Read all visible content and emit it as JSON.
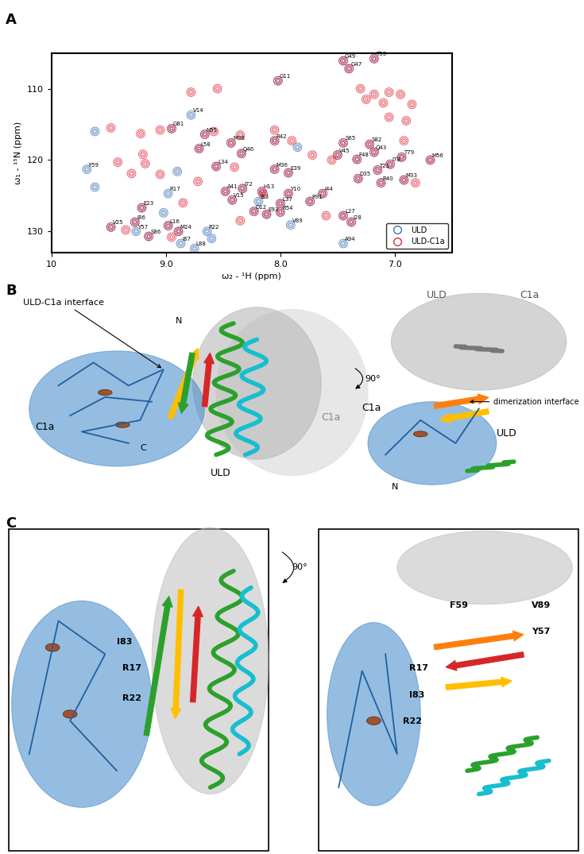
{
  "chart_data": {
    "type": "scatter",
    "panel_label": "A",
    "x_label": "ω₂ - ¹H (ppm)",
    "y_label": "ω₁ - ¹⁵N (ppm)",
    "xlim": [
      10,
      6.5
    ],
    "ylim": [
      133,
      105
    ],
    "xticks": [
      10,
      {
        "value": 9,
        "label": "9.0"
      },
      {
        "value": 8,
        "label": "8.0"
      },
      {
        "value": 7,
        "label": "7.0"
      }
    ],
    "yticks": [
      110,
      120,
      130
    ],
    "legend": "lower right",
    "series": [
      {
        "name": "ULD",
        "color": "#3a6fb6",
        "marker": "o",
        "x": [
          7.45,
          7.4,
          7.18,
          8.02,
          8.78,
          8.95,
          8.66,
          8.43,
          8.05,
          8.71,
          8.34,
          7.45,
          7.22,
          7.18,
          7.5,
          7.33,
          6.94,
          7.04,
          6.69,
          8.56,
          8.05,
          7.93,
          7.15,
          7.32,
          7.12,
          6.92,
          9.69,
          8.16,
          8.33,
          8.48,
          7.93,
          7.63,
          8.98,
          8.42,
          8.19,
          8.0,
          7.74,
          9.21,
          8.23,
          8.12,
          8.0,
          7.45,
          7.38,
          7.91,
          9.27,
          9.48,
          9.26,
          8.98,
          8.89,
          8.64,
          9.15,
          8.87,
          8.75,
          7.45,
          9.62,
          9.62,
          8.9,
          7.85,
          8.6,
          9.02
        ],
        "values": [
          106.1,
          107.2,
          105.8,
          108.9,
          113.7,
          115.6,
          116.4,
          117.6,
          117.3,
          118.4,
          119.1,
          117.6,
          117.8,
          118.9,
          119.3,
          119.9,
          119.6,
          120.6,
          120.0,
          120.9,
          121.3,
          121.8,
          121.4,
          122.6,
          123.2,
          122.8,
          121.3,
          124.4,
          124.0,
          124.4,
          124.7,
          124.7,
          124.7,
          125.6,
          125.8,
          126.1,
          125.8,
          126.7,
          127.2,
          127.6,
          127.3,
          127.8,
          128.7,
          129.1,
          128.7,
          129.4,
          130.0,
          129.2,
          130.0,
          130.0,
          130.7,
          131.7,
          132.4,
          131.7,
          116.0,
          123.8,
          121.6,
          118.2,
          131.0,
          127.4
        ]
      },
      {
        "name": "ULD-C1a",
        "color": "#e0283a",
        "marker": "o",
        "x": [
          7.45,
          7.4,
          7.18,
          8.02,
          8.95,
          8.66,
          8.43,
          8.05,
          8.71,
          8.34,
          7.45,
          7.22,
          7.18,
          7.5,
          7.33,
          6.94,
          7.04,
          6.69,
          8.56,
          8.05,
          7.93,
          7.15,
          7.32,
          7.12,
          6.92,
          8.16,
          8.33,
          8.48,
          7.93,
          7.63,
          8.42,
          8.0,
          7.74,
          9.21,
          8.23,
          8.12,
          8.0,
          7.45,
          7.38,
          9.27,
          9.48,
          8.98,
          8.89,
          9.15,
          9.48,
          9.22,
          9.05,
          8.78,
          8.55,
          9.2,
          9.18,
          9.42,
          9.05,
          9.35,
          8.85,
          8.58,
          8.35,
          8.05,
          7.9,
          7.72,
          7.55,
          7.3,
          7.18,
          7.05,
          6.95,
          7.25,
          7.1,
          6.85,
          7.05,
          6.9,
          6.92,
          6.82,
          8.4,
          8.15,
          7.6,
          8.35,
          8.72,
          8.95,
          9.3
        ],
        "values": [
          106.1,
          107.2,
          105.8,
          108.9,
          115.6,
          116.4,
          117.6,
          117.3,
          118.4,
          119.1,
          117.6,
          117.8,
          118.9,
          119.3,
          119.9,
          119.6,
          120.6,
          120.0,
          120.9,
          121.3,
          121.8,
          121.4,
          122.6,
          123.2,
          122.8,
          124.4,
          124.0,
          124.4,
          124.7,
          124.7,
          125.6,
          126.1,
          125.8,
          126.7,
          127.2,
          127.6,
          127.3,
          127.8,
          128.7,
          128.7,
          129.4,
          129.2,
          130.0,
          130.7,
          115.5,
          116.3,
          115.8,
          110.5,
          110.0,
          119.2,
          120.5,
          120.3,
          122.0,
          129.8,
          126.0,
          116.0,
          116.5,
          115.8,
          117.3,
          119.3,
          120.0,
          110.0,
          110.8,
          110.5,
          110.8,
          111.5,
          112.0,
          112.2,
          114.0,
          114.5,
          117.3,
          123.2,
          121.0,
          124.8,
          127.8,
          128.5,
          123.0,
          130.8,
          121.9
        ]
      }
    ],
    "peak_labels": [
      {
        "text": "G49",
        "x": 7.45,
        "y": 106.1
      },
      {
        "text": "G47",
        "x": 7.4,
        "y": 107.2
      },
      {
        "text": "T53",
        "x": 7.18,
        "y": 105.8
      },
      {
        "text": "G11",
        "x": 8.02,
        "y": 108.9
      },
      {
        "text": "V14",
        "x": 8.78,
        "y": 113.7
      },
      {
        "text": "G81",
        "x": 8.95,
        "y": 115.6
      },
      {
        "text": "N55",
        "x": 8.66,
        "y": 116.4
      },
      {
        "text": "M38",
        "x": 8.43,
        "y": 117.6
      },
      {
        "text": "R42",
        "x": 8.05,
        "y": 117.3
      },
      {
        "text": "L58",
        "x": 8.71,
        "y": 118.4
      },
      {
        "text": "Q46",
        "x": 8.34,
        "y": 119.1
      },
      {
        "text": "S65",
        "x": 7.45,
        "y": 117.6
      },
      {
        "text": "S82",
        "x": 7.22,
        "y": 117.8
      },
      {
        "text": "Q43",
        "x": 7.18,
        "y": 118.9
      },
      {
        "text": "V45",
        "x": 7.5,
        "y": 119.3
      },
      {
        "text": "F48",
        "x": 7.33,
        "y": 119.9
      },
      {
        "text": "T79",
        "x": 6.94,
        "y": 119.6
      },
      {
        "text": "I78",
        "x": 7.04,
        "y": 120.6
      },
      {
        "text": "M56",
        "x": 6.69,
        "y": 120.0
      },
      {
        "text": "L34",
        "x": 8.56,
        "y": 120.9
      },
      {
        "text": "M36",
        "x": 8.05,
        "y": 121.3
      },
      {
        "text": "E39",
        "x": 7.93,
        "y": 121.8
      },
      {
        "text": "T21",
        "x": 7.15,
        "y": 121.4
      },
      {
        "text": "D35",
        "x": 7.32,
        "y": 122.6
      },
      {
        "text": "R40",
        "x": 7.12,
        "y": 123.2
      },
      {
        "text": "M33",
        "x": 6.92,
        "y": 122.8
      },
      {
        "text": "F59",
        "x": 9.69,
        "y": 121.3
      },
      {
        "text": "H13",
        "x": 8.16,
        "y": 124.4
      },
      {
        "text": "I72",
        "x": 8.33,
        "y": 124.0
      },
      {
        "text": "A41",
        "x": 8.48,
        "y": 124.4
      },
      {
        "text": "Y10",
        "x": 7.93,
        "y": 124.7
      },
      {
        "text": "I44",
        "x": 7.63,
        "y": 124.7
      },
      {
        "text": "R17",
        "x": 8.98,
        "y": 124.7
      },
      {
        "text": "V15",
        "x": 8.42,
        "y": 125.6
      },
      {
        "text": "I83",
        "x": 8.19,
        "y": 125.8
      },
      {
        "text": "L37",
        "x": 8.0,
        "y": 126.1
      },
      {
        "text": "R91",
        "x": 7.74,
        "y": 125.8
      },
      {
        "text": "E23",
        "x": 9.21,
        "y": 126.7
      },
      {
        "text": "D12",
        "x": 8.23,
        "y": 127.2
      },
      {
        "text": "E93",
        "x": 8.12,
        "y": 127.6
      },
      {
        "text": "R54",
        "x": 8.0,
        "y": 127.3
      },
      {
        "text": "L27",
        "x": 7.45,
        "y": 127.8
      },
      {
        "text": "I28",
        "x": 7.38,
        "y": 128.7
      },
      {
        "text": "V89",
        "x": 7.91,
        "y": 129.1
      },
      {
        "text": "I86",
        "x": 9.27,
        "y": 128.7
      },
      {
        "text": "V25",
        "x": 9.48,
        "y": 129.4
      },
      {
        "text": "Y57",
        "x": 9.26,
        "y": 130.0
      },
      {
        "text": "L16",
        "x": 8.98,
        "y": 129.2
      },
      {
        "text": "M24",
        "x": 8.89,
        "y": 130.0
      },
      {
        "text": "R22",
        "x": 8.64,
        "y": 130.0
      },
      {
        "text": "S86",
        "x": 9.15,
        "y": 130.7
      },
      {
        "text": "I87",
        "x": 8.87,
        "y": 131.7
      },
      {
        "text": "L88",
        "x": 8.75,
        "y": 132.4
      },
      {
        "text": "A94",
        "x": 7.45,
        "y": 131.7
      }
    ]
  },
  "diagrams": {
    "B": {
      "panel_label": "B",
      "rotation": "90°",
      "left": {
        "interface_label": "ULD-C1a interface",
        "n_terminus": "N",
        "c_terminus": "C",
        "domains": [
          "C1a",
          "ULD",
          "C1a"
        ]
      },
      "right": {
        "domains_top": [
          "ULD",
          "C1a"
        ],
        "interface_label": "dimerization interface",
        "domains_bottom": [
          "C1a",
          "ULD"
        ],
        "n_terminus": "N"
      }
    },
    "C": {
      "panel_label": "C",
      "rotation": "90°",
      "left": {
        "residues": [
          "I83",
          "R17",
          "R22"
        ]
      },
      "right": {
        "residues": [
          "F59",
          "V89",
          "Y57",
          "R17",
          "I83",
          "R22"
        ]
      }
    }
  }
}
